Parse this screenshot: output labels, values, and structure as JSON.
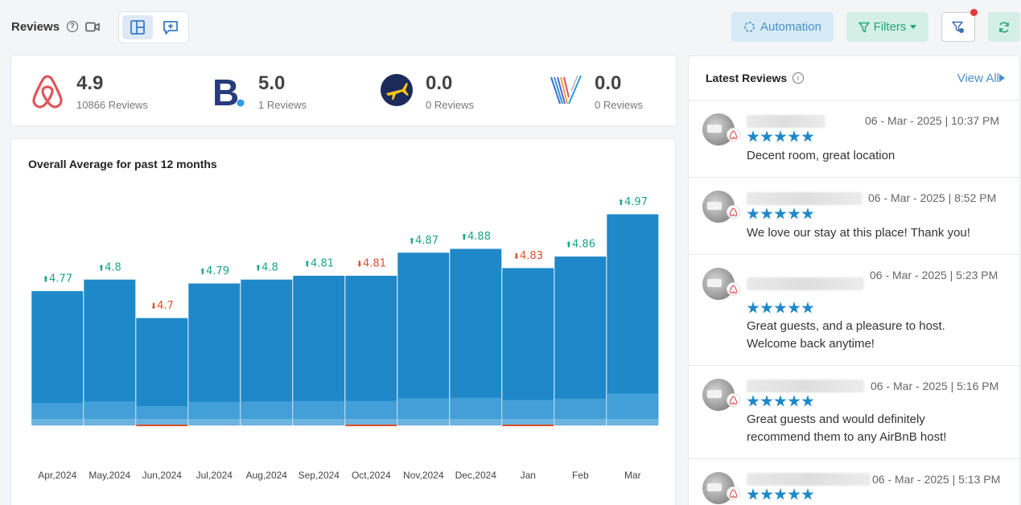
{
  "header": {
    "title": "Reviews",
    "help_icon": "question-circle-icon",
    "video_icon": "video-camera-icon",
    "automation_label": "Automation",
    "filters_label": "Filters",
    "colors": {
      "automation_bg": "#d6ebf6",
      "filters_bg": "#d4f0e6",
      "notification": "#e53935"
    }
  },
  "platforms": [
    {
      "name": "airbnb",
      "score": "4.9",
      "reviews": "10866 Reviews",
      "color": "#e0565b"
    },
    {
      "name": "booking",
      "score": "5.0",
      "reviews": "1 Reviews",
      "color": "#273b7d"
    },
    {
      "name": "expedia",
      "score": "0.0",
      "reviews": "0 Reviews",
      "color": "#1b2b5c"
    },
    {
      "name": "vrbo",
      "score": "0.0",
      "reviews": "0 Reviews",
      "color": "#3d6fd9"
    }
  ],
  "chart_data": {
    "type": "bar",
    "title": "Overall Average for past 12 months",
    "categories": [
      "Apr,2024",
      "May,2024",
      "Jun,2024",
      "Jul,2024",
      "Aug,2024",
      "Sep,2024",
      "Oct,2024",
      "Nov,2024",
      "Dec,2024",
      "Jan",
      "Feb",
      "Mar"
    ],
    "values": [
      4.77,
      4.8,
      4.7,
      4.79,
      4.8,
      4.81,
      4.81,
      4.87,
      4.88,
      4.83,
      4.86,
      4.97
    ],
    "labels": [
      "4.77",
      "4.8",
      "4.7",
      "4.79",
      "4.8",
      "4.81",
      "4.81",
      "4.87",
      "4.88",
      "4.83",
      "4.86",
      "4.97"
    ],
    "trend": [
      "up",
      "up",
      "down",
      "up",
      "up",
      "up",
      "down",
      "up",
      "up",
      "down",
      "up",
      "up"
    ],
    "bar_color": "#1e88c9",
    "up_color": "#17a589",
    "down_color": "#e0502a"
  },
  "latest_reviews": {
    "title": "Latest Reviews",
    "view_all": "View All",
    "items": [
      {
        "date": "06 - Mar - 2025 | 10:37 PM",
        "text": "Decent room, great location",
        "stars": 5
      },
      {
        "date": "06 - Mar - 2025 | 8:52 PM",
        "text": "We love our stay at this place! Thank you!",
        "stars": 5
      },
      {
        "date": "06 - Mar - 2025 | 5:23 PM",
        "text": "Great guests, and a pleasure to host. Welcome back anytime!",
        "stars": 5
      },
      {
        "date": "06 - Mar - 2025 | 5:16 PM",
        "text": "Great guests and would definitely recommend them to any AirBnB host!",
        "stars": 5
      },
      {
        "date": "06 - Mar - 2025 | 5:13 PM",
        "text": "",
        "stars": 5
      }
    ]
  }
}
